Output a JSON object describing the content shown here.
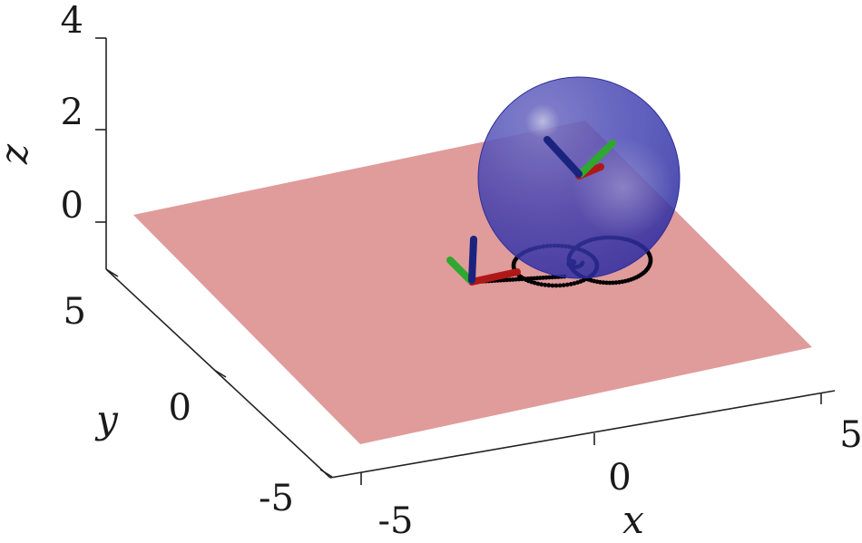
{
  "figure": {
    "axes": {
      "x": {
        "label": "x",
        "ticks": [
          {
            "value": -5,
            "label": "-5"
          },
          {
            "value": 0,
            "label": "0"
          },
          {
            "value": 5,
            "label": "5"
          }
        ]
      },
      "y": {
        "label": "y",
        "ticks": [
          {
            "value": -5,
            "label": "-5"
          },
          {
            "value": 0,
            "label": "0"
          },
          {
            "value": 5,
            "label": "5"
          }
        ]
      },
      "z": {
        "label": "z",
        "ticks": [
          {
            "value": 0,
            "label": "0"
          },
          {
            "value": 2,
            "label": "2"
          },
          {
            "value": 4,
            "label": "4"
          }
        ]
      }
    },
    "colors": {
      "plane": "#e09b9b",
      "sphere": "#3c3cb4",
      "trajectory": "#000000",
      "frame_x": "#b01818",
      "frame_y": "#2fa82f",
      "frame_z": "#1a237e",
      "axis_lines": "#222222"
    }
  }
}
